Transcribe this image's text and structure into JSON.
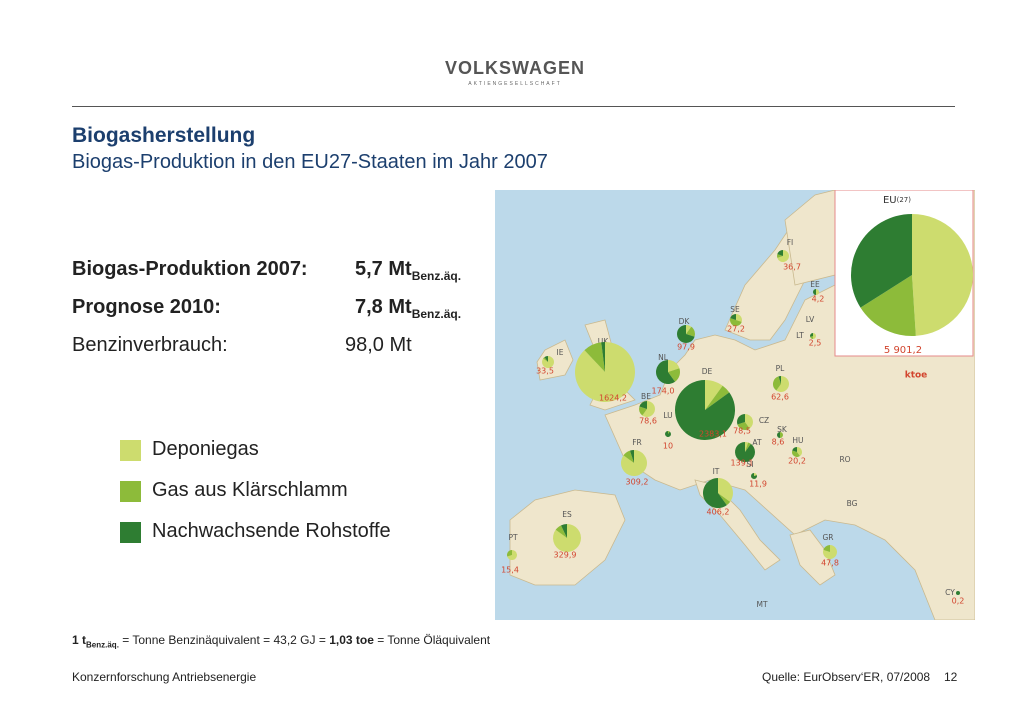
{
  "header": {
    "logo": "VOLKSWAGEN",
    "logo_sub": "AKTIENGESELLSCHAFT"
  },
  "title": "Biogasherstellung",
  "subtitle": "Biogas-Produktion in den EU27-Staaten im Jahr 2007",
  "facts": [
    {
      "label": "Biogas-Produktion 2007:",
      "value": "5,7 Mt",
      "unit": "Benz.äq.",
      "bold": true
    },
    {
      "label": "Prognose 2010:",
      "value": "7,8 Mt",
      "unit": "Benz.äq.",
      "bold": true
    },
    {
      "label": "Benzinverbrauch:",
      "value": "98,0 Mt",
      "bold": false
    }
  ],
  "legend": [
    {
      "label": "Deponiegas",
      "color": "#cddc6e"
    },
    {
      "label": "Gas aus Klärschlamm",
      "color": "#8dbb3a"
    },
    {
      "label": "Nachwachsende Rohstoffe",
      "color": "#2e7d32"
    }
  ],
  "map": {
    "total": {
      "label": "EU",
      "sub": "(27)",
      "value": "5 901,2",
      "unit": "ktoe",
      "shares": [
        49,
        17,
        34
      ]
    },
    "countries": [
      {
        "code": "FI",
        "value": "36,7",
        "shares": [
          70,
          10,
          20
        ]
      },
      {
        "code": "EE",
        "value": "4,2",
        "shares": [
          50,
          0,
          50
        ]
      },
      {
        "code": "SE",
        "value": "27,2",
        "shares": [
          30,
          50,
          20
        ]
      },
      {
        "code": "LV"
      },
      {
        "code": "LT",
        "value": "2,5",
        "shares": [
          50,
          20,
          30
        ]
      },
      {
        "code": "DK",
        "value": "97,9",
        "shares": [
          10,
          20,
          70
        ]
      },
      {
        "code": "IE",
        "value": "33,5",
        "shares": [
          85,
          5,
          10
        ]
      },
      {
        "code": "UK",
        "value": "1624,2",
        "shares": [
          88,
          10,
          2
        ]
      },
      {
        "code": "NL",
        "value": "174,0",
        "shares": [
          20,
          20,
          60
        ]
      },
      {
        "code": "DE",
        "value": "2383,1",
        "shares": [
          10,
          5,
          85
        ]
      },
      {
        "code": "PL",
        "value": "62,6",
        "shares": [
          60,
          35,
          5
        ]
      },
      {
        "code": "BE",
        "value": "78,6",
        "shares": [
          60,
          20,
          20
        ]
      },
      {
        "code": "LU",
        "value": "10",
        "shares": [
          0,
          10,
          90
        ]
      },
      {
        "code": "CZ",
        "value": "78,5",
        "shares": [
          40,
          30,
          30
        ]
      },
      {
        "code": "SK",
        "value": "8,6",
        "shares": [
          0,
          50,
          50
        ]
      },
      {
        "code": "AT",
        "value": "139,1",
        "shares": [
          5,
          5,
          90
        ]
      },
      {
        "code": "HU",
        "value": "20,2",
        "shares": [
          40,
          40,
          20
        ]
      },
      {
        "code": "RO"
      },
      {
        "code": "FR",
        "value": "309,2",
        "shares": [
          85,
          10,
          5
        ]
      },
      {
        "code": "SI",
        "value": "11,9",
        "shares": [
          20,
          0,
          80
        ]
      },
      {
        "code": "IT",
        "value": "406,2",
        "shares": [
          35,
          5,
          60
        ]
      },
      {
        "code": "BG"
      },
      {
        "code": "ES",
        "value": "329,9",
        "shares": [
          85,
          8,
          7
        ]
      },
      {
        "code": "PT",
        "value": "15,4",
        "shares": [
          70,
          30,
          0
        ]
      },
      {
        "code": "GR",
        "value": "47,8",
        "shares": [
          80,
          20,
          0
        ]
      },
      {
        "code": "CY",
        "value": "0,2",
        "shares": [
          0,
          0,
          100
        ]
      },
      {
        "code": "MT"
      }
    ]
  },
  "footnote": [
    {
      "text": "1 t",
      "bold": true
    },
    {
      "text": "Benz.äq.",
      "bold": true,
      "sub": true
    },
    {
      "text": " = Tonne Benzinäquivalent = 43,2 GJ = ",
      "bold": false
    },
    {
      "text": "1,03 toe",
      "bold": true
    },
    {
      "text": " = Tonne Öläquivalent",
      "bold": false
    }
  ],
  "footer": {
    "left": "Konzernforschung Antriebsenergie",
    "source": "Quelle: EurObserv‘ER, 07/2008",
    "page": "12"
  }
}
